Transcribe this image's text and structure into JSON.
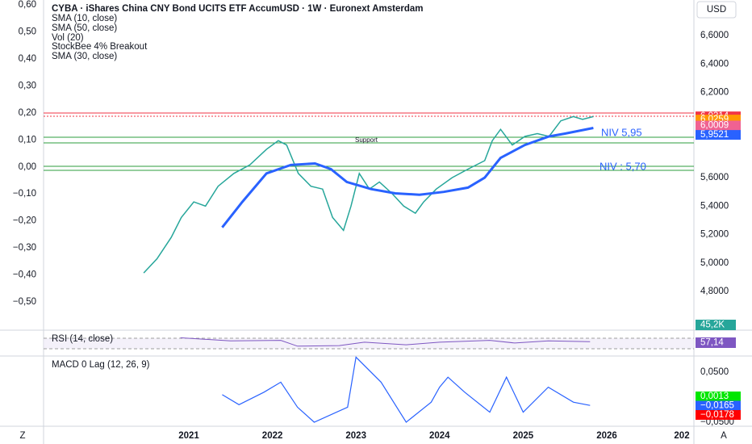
{
  "chart_data": {
    "type": "line",
    "title": "CYBA · iShares China CNY Bond UCITS ETF AccumUSD · 1W · Euronext Amsterdam",
    "legend_items": [
      "SMA (10, close)",
      "SMA (50, close)",
      "Vol (20)",
      "StockBee 4% Breakout",
      "SMA (30, close)"
    ],
    "currency": "USD",
    "annotations": [
      "NIV 5,95",
      "NIV : 5,70",
      "Support"
    ],
    "xticks": [
      2021,
      2022,
      2023,
      2024,
      2025,
      2026
    ],
    "x_clipped_label": "202",
    "corner_left": "Z",
    "corner_right": "A",
    "yticks": [
      {
        "value": 6.6,
        "label": "6,6000"
      },
      {
        "value": 6.4,
        "label": "6,4000"
      },
      {
        "value": 6.2,
        "label": "6,2000"
      },
      {
        "value": 5.6,
        "label": "5,6000"
      },
      {
        "value": 5.4,
        "label": "5,4000"
      },
      {
        "value": 5.2,
        "label": "5,2000"
      },
      {
        "value": 5.0,
        "label": "5,0000"
      },
      {
        "value": 4.8,
        "label": "4,8000"
      }
    ],
    "left_ticks": [
      {
        "value": 0.6,
        "label": "0,60"
      },
      {
        "value": 0.5,
        "label": "0,50"
      },
      {
        "value": 0.4,
        "label": "0,40"
      },
      {
        "value": 0.3,
        "label": "0,30"
      },
      {
        "value": 0.2,
        "label": "0,20"
      },
      {
        "value": 0.1,
        "label": "0,10"
      },
      {
        "value": 0.0,
        "label": "0,00"
      },
      {
        "value": -0.1,
        "label": "−0,10"
      },
      {
        "value": -0.2,
        "label": "−0,20"
      },
      {
        "value": -0.3,
        "label": "−0,30"
      },
      {
        "value": -0.4,
        "label": "−0,40"
      },
      {
        "value": -0.5,
        "label": "−0,50"
      }
    ],
    "price_tags": [
      {
        "value": 6.0314,
        "label": "6,0314",
        "color": "#f23645"
      },
      {
        "value": 6.0259,
        "label": "6,0259",
        "color": "#ff9800"
      },
      {
        "value": 6.0009,
        "label": "6,0009",
        "color": "#f06292"
      },
      {
        "value": 5.9521,
        "label": "5,9521",
        "color": "#2962ff"
      }
    ],
    "series": [
      {
        "name": "Price",
        "color": "#26a69a",
        "x": [
          2020.46,
          2020.62,
          2020.79,
          2020.91,
          2021.06,
          2021.2,
          2021.35,
          2021.54,
          2021.73,
          2021.93,
          2022.07,
          2022.17,
          2022.31,
          2022.46,
          2022.6,
          2022.72,
          2022.85,
          2022.94,
          2023.04,
          2023.16,
          2023.28,
          2023.43,
          2023.57,
          2023.71,
          2023.81,
          2023.96,
          2024.15,
          2024.34,
          2024.54,
          2024.63,
          2024.73,
          2024.87,
          2025.02,
          2025.17,
          2025.31,
          2025.45,
          2025.6,
          2025.71,
          2025.84
        ],
        "values": [
          4.93,
          5.03,
          5.18,
          5.32,
          5.43,
          5.4,
          5.54,
          5.63,
          5.69,
          5.8,
          5.86,
          5.83,
          5.63,
          5.54,
          5.52,
          5.32,
          5.23,
          5.4,
          5.63,
          5.52,
          5.57,
          5.49,
          5.4,
          5.35,
          5.43,
          5.52,
          5.6,
          5.66,
          5.72,
          5.86,
          5.94,
          5.83,
          5.89,
          5.91,
          5.89,
          6.0,
          6.03,
          6.01,
          6.03
        ]
      },
      {
        "name": "SMA (50, close)",
        "color": "#2962ff",
        "x": [
          2021.4,
          2021.64,
          2021.93,
          2022.22,
          2022.51,
          2022.7,
          2022.89,
          2023.18,
          2023.47,
          2023.76,
          2024.05,
          2024.34,
          2024.54,
          2024.73,
          2025.02,
          2025.31,
          2025.5,
          2025.84
        ],
        "values": [
          5.25,
          5.43,
          5.63,
          5.69,
          5.7,
          5.66,
          5.57,
          5.52,
          5.49,
          5.48,
          5.5,
          5.53,
          5.6,
          5.74,
          5.83,
          5.89,
          5.91,
          5.95
        ]
      }
    ],
    "volume": {
      "label": "45,2K",
      "value": 45200,
      "color": "#26a69a"
    },
    "rsi": {
      "title": "RSI (14, close)",
      "color": "#7e57c2",
      "tag": {
        "value": 57.14,
        "label": "57,14"
      },
      "x": [
        2020.9,
        2021.5,
        2022.1,
        2022.3,
        2022.8,
        2023.1,
        2023.6,
        2024.0,
        2024.6,
        2024.9,
        2025.3,
        2025.8
      ],
      "values": [
        72,
        60,
        62,
        40,
        42,
        55,
        45,
        55,
        62,
        52,
        60,
        57.14
      ]
    },
    "macd": {
      "title": "MACD 0 Lag (12, 26, 9)",
      "color": "#2962ff",
      "yticks": [
        {
          "value": 0.05,
          "label": "0,0500"
        },
        {
          "value": -0.05,
          "label": "−0,0500"
        }
      ],
      "tags": [
        {
          "value": 0.0013,
          "label": "0,0013",
          "color": "#00e600"
        },
        {
          "value": -0.0165,
          "label": "−0,0165",
          "color": "#2962ff"
        },
        {
          "value": -0.0178,
          "label": "−0,0178",
          "color": "#ff0000"
        }
      ],
      "x": [
        2021.4,
        2021.6,
        2021.9,
        2022.1,
        2022.3,
        2022.5,
        2022.9,
        2023.0,
        2023.3,
        2023.6,
        2023.9,
        2024.0,
        2024.1,
        2024.3,
        2024.6,
        2024.8,
        2025.0,
        2025.3,
        2025.6,
        2025.8
      ],
      "values": [
        0.005,
        -0.015,
        0.01,
        0.03,
        -0.02,
        -0.05,
        -0.02,
        0.08,
        0.03,
        -0.05,
        -0.01,
        0.02,
        0.04,
        0.01,
        -0.03,
        0.04,
        -0.03,
        0.02,
        -0.01,
        -0.0165
      ]
    }
  }
}
